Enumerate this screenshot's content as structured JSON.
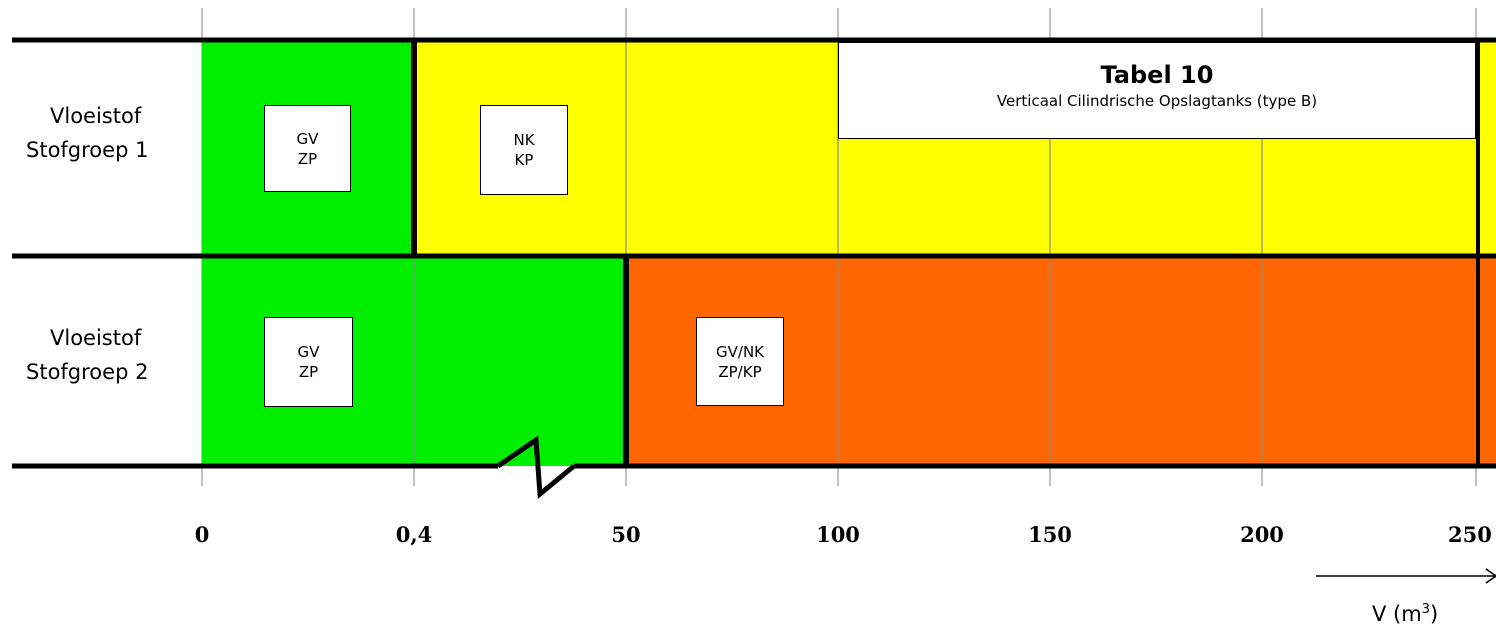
{
  "title": {
    "heading": "Tabel 10",
    "subheading": "Verticaal Cilindrische Opslagtanks (type B)"
  },
  "rows": [
    {
      "label_line1": "Vloeistof",
      "label_line2": "Stofgroep 1",
      "zones": [
        {
          "from": "0",
          "to": "0,4",
          "color": "#00ee00",
          "code_line1": "GV",
          "code_line2": "ZP"
        },
        {
          "from": "0,4",
          "to": "250",
          "color": "#ffff00",
          "code_line1": "NK",
          "code_line2": "KP"
        }
      ]
    },
    {
      "label_line1": "Vloeistof",
      "label_line2": "Stofgroep 2",
      "zones": [
        {
          "from": "0",
          "to": "50",
          "color": "#00ee00",
          "code_line1": "GV",
          "code_line2": "ZP"
        },
        {
          "from": "50",
          "to": "250",
          "color": "#ff6600",
          "code_line1": "GV/NK",
          "code_line2": "ZP/KP"
        }
      ]
    }
  ],
  "axis": {
    "ticks": [
      "0",
      "0,4",
      "50",
      "100",
      "150",
      "200",
      "250"
    ],
    "label": "V (m",
    "label_sup": "3",
    "label_close": ")"
  }
}
